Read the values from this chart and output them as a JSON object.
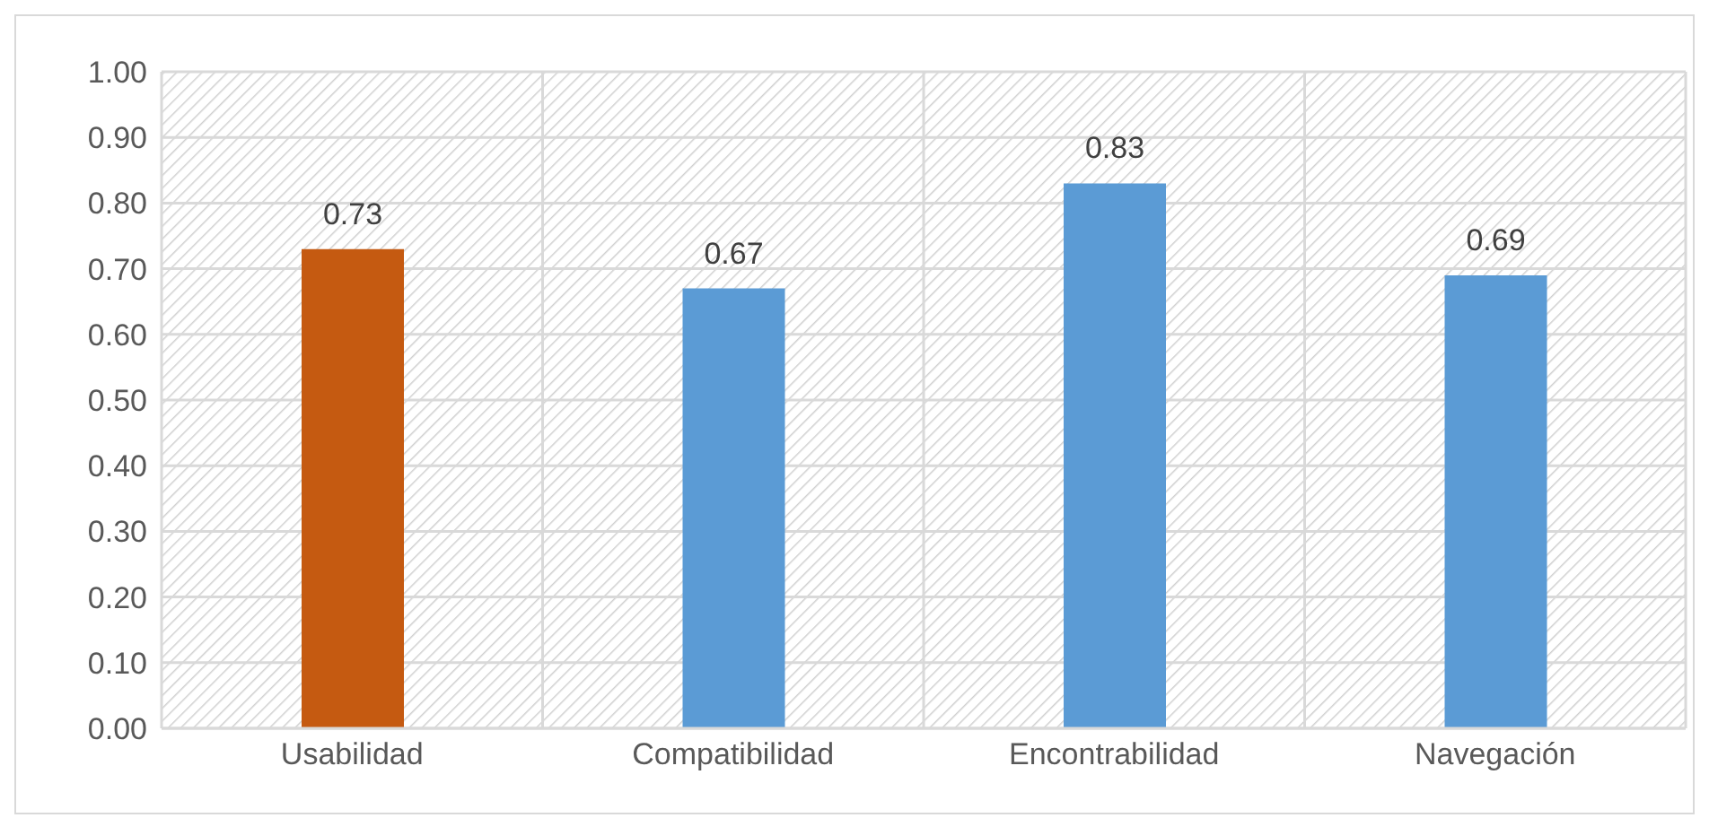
{
  "chart_data": {
    "type": "bar",
    "categories": [
      "Usabilidad",
      "Compatibilidad",
      "Encontrabilidad",
      "Navegación"
    ],
    "values": [
      0.73,
      0.67,
      0.83,
      0.69
    ],
    "colors": [
      "#c55a11",
      "#5b9bd5",
      "#5b9bd5",
      "#5b9bd5"
    ],
    "ylim": [
      0,
      1
    ],
    "yticks": [
      {
        "value": 0,
        "label": "0.00"
      },
      {
        "value": 0.1,
        "label": "0.10"
      },
      {
        "value": 0.2,
        "label": "0.20"
      },
      {
        "value": 0.3,
        "label": "0.30"
      },
      {
        "value": 0.4,
        "label": "0.40"
      },
      {
        "value": 0.5,
        "label": "0.50"
      },
      {
        "value": 0.6,
        "label": "0.60"
      },
      {
        "value": 0.7,
        "label": "0.70"
      },
      {
        "value": 0.8,
        "label": "0.80"
      },
      {
        "value": 0.9,
        "label": "0.90"
      },
      {
        "value": 1,
        "label": "1.00"
      }
    ],
    "grid": true,
    "data_labels": true
  }
}
